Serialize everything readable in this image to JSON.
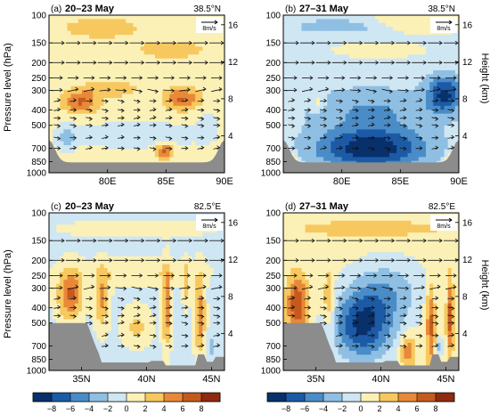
{
  "figure": {
    "y_axis_left_label": "Pressure level (hPa)",
    "y_axis_right_label": "Height (km)",
    "wind_reference_label": "8m/s"
  },
  "chart_data": [
    {
      "type": "heatmap",
      "panel": "(a)",
      "title": "20–23 May",
      "location": "38.5°N",
      "xlabel": "",
      "ylabel": "Pressure level (hPa)",
      "y_right_label": "Height (km)",
      "x_ticks": [
        {
          "value": 80,
          "label": "80E"
        },
        {
          "value": 85,
          "label": "85E"
        },
        {
          "value": 90,
          "label": "90E"
        }
      ],
      "xlim": [
        75,
        90
      ],
      "y_ticks": [
        1000,
        850,
        700,
        500,
        400,
        300,
        250,
        200,
        150,
        100
      ],
      "ylim": [
        1000,
        100
      ],
      "y_right_ticks": [
        4,
        8,
        12,
        16
      ],
      "wind_reference": "8m/s",
      "pattern": "warm"
    },
    {
      "type": "heatmap",
      "panel": "(b)",
      "title": "27–31 May",
      "location": "38.5°N",
      "xlabel": "",
      "ylabel": "",
      "y_right_label": "Height (km)",
      "x_ticks": [
        {
          "value": 80,
          "label": "80E"
        },
        {
          "value": 85,
          "label": "85E"
        },
        {
          "value": 90,
          "label": "90E"
        }
      ],
      "xlim": [
        75,
        90
      ],
      "y_ticks": [
        1000,
        850,
        700,
        500,
        400,
        300,
        250,
        200,
        150,
        100
      ],
      "ylim": [
        1000,
        100
      ],
      "y_right_ticks": [
        4,
        8,
        12,
        16
      ],
      "wind_reference": "8m/s",
      "pattern": "cold"
    },
    {
      "type": "heatmap",
      "panel": "(c)",
      "title": "20–23 May",
      "location": "82.5°E",
      "xlabel": "",
      "ylabel": "Pressure level (hPa)",
      "y_right_label": "Height (km)",
      "x_ticks": [
        {
          "value": 35,
          "label": "35N"
        },
        {
          "value": 40,
          "label": "40N"
        },
        {
          "value": 45,
          "label": "45N"
        }
      ],
      "xlim": [
        32.5,
        46
      ],
      "y_ticks": [
        1000,
        850,
        700,
        500,
        400,
        300,
        250,
        200,
        150,
        100
      ],
      "ylim": [
        1000,
        100
      ],
      "y_right_ticks": [
        4,
        8,
        12,
        16
      ],
      "wind_reference": "8m/s",
      "pattern": "warm-meridional"
    },
    {
      "type": "heatmap",
      "panel": "(d)",
      "title": "27–31 May",
      "location": "82.5°E",
      "xlabel": "",
      "ylabel": "",
      "y_right_label": "Height (km)",
      "x_ticks": [
        {
          "value": 35,
          "label": "35N"
        },
        {
          "value": 40,
          "label": "40N"
        },
        {
          "value": 45,
          "label": "45N"
        }
      ],
      "xlim": [
        32.5,
        46
      ],
      "y_ticks": [
        1000,
        850,
        700,
        500,
        400,
        300,
        250,
        200,
        150,
        100
      ],
      "ylim": [
        1000,
        100
      ],
      "y_right_ticks": [
        4,
        8,
        12,
        16
      ],
      "wind_reference": "8m/s",
      "pattern": "cold-meridional"
    }
  ],
  "colorbar": {
    "levels": [
      -8,
      -6,
      -4,
      -2,
      0,
      2,
      4,
      6,
      8
    ],
    "labels": [
      "−8",
      "−6",
      "−4",
      "−2",
      "0",
      "2",
      "4",
      "6",
      "8"
    ],
    "colors": [
      "#08306b",
      "#1c5aa6",
      "#4a8cc8",
      "#8fbfe2",
      "#cfe6f3",
      "#fbf0b6",
      "#f6c85f",
      "#e8893a",
      "#c65a1e",
      "#8e2b10"
    ]
  }
}
